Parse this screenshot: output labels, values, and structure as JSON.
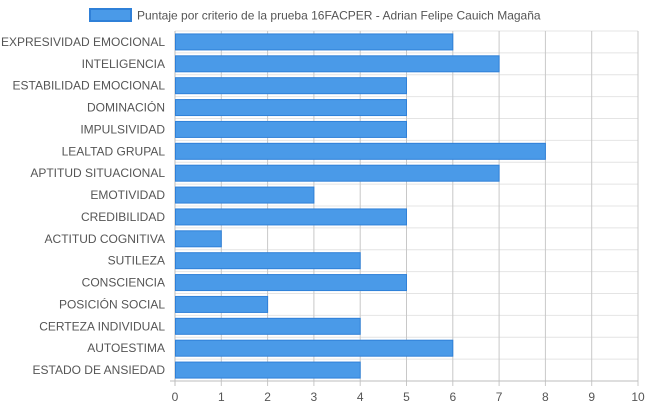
{
  "chart_data": {
    "type": "bar",
    "orientation": "horizontal",
    "legend_position": "top",
    "grid": true,
    "xlim": [
      0,
      10
    ],
    "x_ticks": [
      "0",
      "1",
      "2",
      "3",
      "4",
      "5",
      "6",
      "7",
      "8",
      "9",
      "10"
    ],
    "categories": [
      "EXPRESIVIDAD EMOCIONAL",
      "INTELIGENCIA",
      "ESTABILIDAD EMOCIONAL",
      "DOMINACIÓN",
      "IMPULSIVIDAD",
      "LEALTAD GRUPAL",
      "APTITUD SITUACIONAL",
      "EMOTIVIDAD",
      "CREDIBILIDAD",
      "ACTITUD COGNITIVA",
      "SUTILEZA",
      "CONSCIENCIA",
      "POSICIÓN SOCIAL",
      "CERTEZA INDIVIDUAL",
      "AUTOESTIMA",
      "ESTADO DE ANSIEDAD"
    ],
    "series": [
      {
        "name": "Puntaje por criterio de la prueba 16FACPER - Adrian Felipe Cauich Magaña",
        "values": [
          6,
          7,
          5,
          5,
          5,
          8,
          7,
          3,
          5,
          1,
          4,
          5,
          2,
          4,
          6,
          4
        ],
        "color": "#4a9ae8",
        "border_color": "#2f80d8"
      }
    ]
  }
}
